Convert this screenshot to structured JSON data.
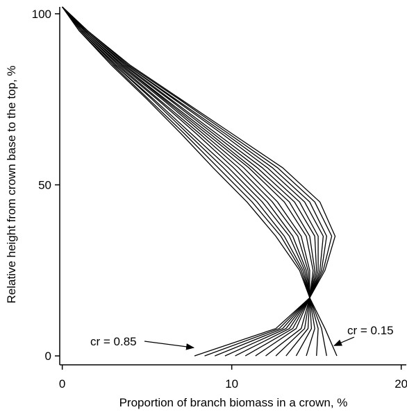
{
  "chart_data": {
    "type": "line",
    "xlabel": "Proportion of branch biomass in a crown, %",
    "ylabel": "Relative height from crown base to the top, %",
    "xlim": [
      -0.15,
      20.3
    ],
    "ylim": [
      -1.8,
      102
    ],
    "xticks": [
      0,
      10,
      20
    ],
    "yticks": [
      0,
      50,
      100
    ],
    "color": "#000000",
    "annotations": [
      {
        "text": "cr = 0.85",
        "x": 8,
        "y": 2
      },
      {
        "text": "cr = 0.15",
        "x": 15.8,
        "y": 2
      }
    ],
    "series": [
      {
        "x": [
          7.8,
          12.6,
          14.6,
          15.5,
          16.1,
          15.2,
          13.0,
          10.0,
          7.0,
          4.0,
          1.5,
          0
        ],
        "values": [
          0,
          8,
          17,
          25,
          35,
          45,
          55,
          65,
          75,
          85,
          95,
          102
        ]
      },
      {
        "x": [
          8.4,
          12.8,
          14.6,
          15.4,
          15.9,
          14.9,
          12.7,
          9.8,
          6.9,
          3.9,
          1.5,
          0
        ],
        "values": [
          0,
          8,
          17,
          25,
          35,
          45,
          55,
          65,
          75,
          85,
          95,
          102
        ]
      },
      {
        "x": [
          9.0,
          13.0,
          14.6,
          15.3,
          15.6,
          14.6,
          12.4,
          9.6,
          6.7,
          3.8,
          1.4,
          0
        ],
        "values": [
          0,
          8,
          17,
          25,
          35,
          45,
          55,
          65,
          75,
          85,
          95,
          102
        ]
      },
      {
        "x": [
          9.6,
          13.2,
          14.6,
          15.2,
          15.4,
          14.3,
          12.1,
          9.4,
          6.6,
          3.8,
          1.4,
          0
        ],
        "values": [
          0,
          8,
          17,
          25,
          35,
          45,
          55,
          65,
          75,
          85,
          95,
          102
        ]
      },
      {
        "x": [
          10.2,
          13.4,
          14.6,
          15.1,
          15.1,
          14.0,
          11.8,
          9.1,
          6.4,
          3.7,
          1.4,
          0
        ],
        "values": [
          0,
          8,
          17,
          25,
          35,
          45,
          55,
          65,
          75,
          85,
          95,
          102
        ]
      },
      {
        "x": [
          10.8,
          13.6,
          14.6,
          15.0,
          14.9,
          13.7,
          11.5,
          8.9,
          6.3,
          3.6,
          1.3,
          0
        ],
        "values": [
          0,
          8,
          17,
          25,
          35,
          45,
          55,
          65,
          75,
          85,
          95,
          102
        ]
      },
      {
        "x": [
          11.4,
          13.8,
          14.6,
          14.9,
          14.6,
          13.4,
          11.2,
          8.7,
          6.1,
          3.5,
          1.3,
          0
        ],
        "values": [
          0,
          8,
          17,
          25,
          35,
          45,
          55,
          65,
          75,
          85,
          95,
          102
        ]
      },
      {
        "x": [
          12.0,
          14.1,
          14.6,
          14.8,
          14.4,
          13.1,
          11.0,
          8.5,
          6.0,
          3.5,
          1.3,
          0
        ],
        "values": [
          0,
          8,
          17,
          25,
          35,
          45,
          55,
          65,
          75,
          85,
          95,
          102
        ]
      },
      {
        "x": [
          12.6,
          14.3,
          14.6,
          14.6,
          14.1,
          12.7,
          10.7,
          8.3,
          5.9,
          3.4,
          1.2,
          0
        ],
        "values": [
          0,
          8,
          17,
          25,
          35,
          45,
          55,
          65,
          75,
          85,
          95,
          102
        ]
      },
      {
        "x": [
          13.2,
          14.5,
          14.6,
          14.5,
          13.9,
          12.4,
          10.4,
          8.1,
          5.7,
          3.3,
          1.2,
          0
        ],
        "values": [
          0,
          8,
          17,
          25,
          35,
          45,
          55,
          65,
          75,
          85,
          95,
          102
        ]
      },
      {
        "x": [
          13.8,
          14.7,
          14.6,
          14.4,
          13.6,
          12.1,
          10.1,
          7.9,
          5.6,
          3.2,
          1.1,
          0
        ],
        "values": [
          0,
          8,
          17,
          25,
          35,
          45,
          55,
          65,
          75,
          85,
          95,
          102
        ]
      },
      {
        "x": [
          14.4,
          14.9,
          14.6,
          14.3,
          13.4,
          11.8,
          9.8,
          7.6,
          5.4,
          3.1,
          1.1,
          0
        ],
        "values": [
          0,
          8,
          17,
          25,
          35,
          45,
          55,
          65,
          75,
          85,
          95,
          102
        ]
      },
      {
        "x": [
          15.0,
          15.1,
          14.6,
          14.2,
          13.1,
          11.5,
          9.5,
          7.4,
          5.3,
          3.1,
          1.1,
          0
        ],
        "values": [
          0,
          8,
          17,
          25,
          35,
          45,
          55,
          65,
          75,
          85,
          95,
          102
        ]
      },
      {
        "x": [
          15.6,
          15.3,
          14.6,
          14.1,
          12.9,
          11.2,
          9.2,
          7.2,
          5.1,
          3.0,
          1.0,
          0
        ],
        "values": [
          0,
          8,
          17,
          25,
          35,
          45,
          55,
          65,
          75,
          85,
          95,
          102
        ]
      },
      {
        "x": [
          16.2,
          15.5,
          14.6,
          14.0,
          12.6,
          10.9,
          8.9,
          7.0,
          5.0,
          2.9,
          1.0,
          0
        ],
        "values": [
          0,
          8,
          17,
          25,
          35,
          45,
          55,
          65,
          75,
          85,
          95,
          102
        ]
      }
    ]
  }
}
